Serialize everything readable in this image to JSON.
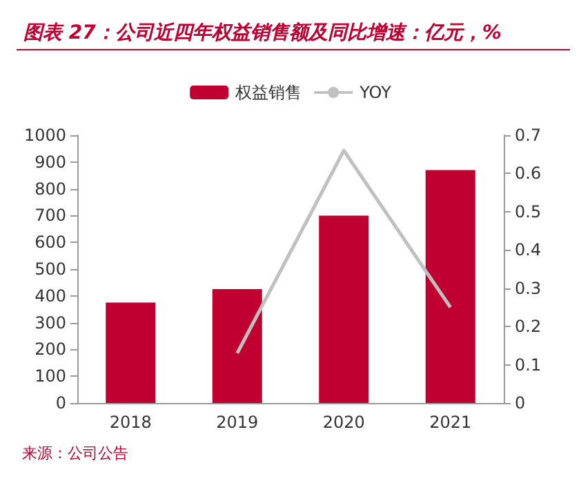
{
  "chart_data": {
    "type": "bar",
    "title": "图表 27：公司近四年权益销售额及同比增速：亿元，%",
    "categories": [
      "2018",
      "2019",
      "2020",
      "2021"
    ],
    "series": [
      {
        "name": "权益销售",
        "color": "#c00030",
        "values": [
          375,
          425,
          700,
          870
        ]
      },
      {
        "name": "YOY",
        "type": "line",
        "axis": "y2",
        "color": "#c0c0c0",
        "values": [
          null,
          0.13,
          0.66,
          0.25
        ]
      }
    ],
    "ylim": [
      0,
      1000
    ],
    "yticks": [
      0,
      100,
      200,
      300,
      400,
      500,
      600,
      700,
      800,
      900,
      1000
    ],
    "y2lim": [
      0,
      0.7
    ],
    "y2ticks": [
      0,
      0.1,
      0.2,
      0.3,
      0.4,
      0.5,
      0.6,
      0.7
    ],
    "legend": "top",
    "grid": false,
    "marker": "none",
    "annotations": [
      "来源：公司公告"
    ]
  }
}
